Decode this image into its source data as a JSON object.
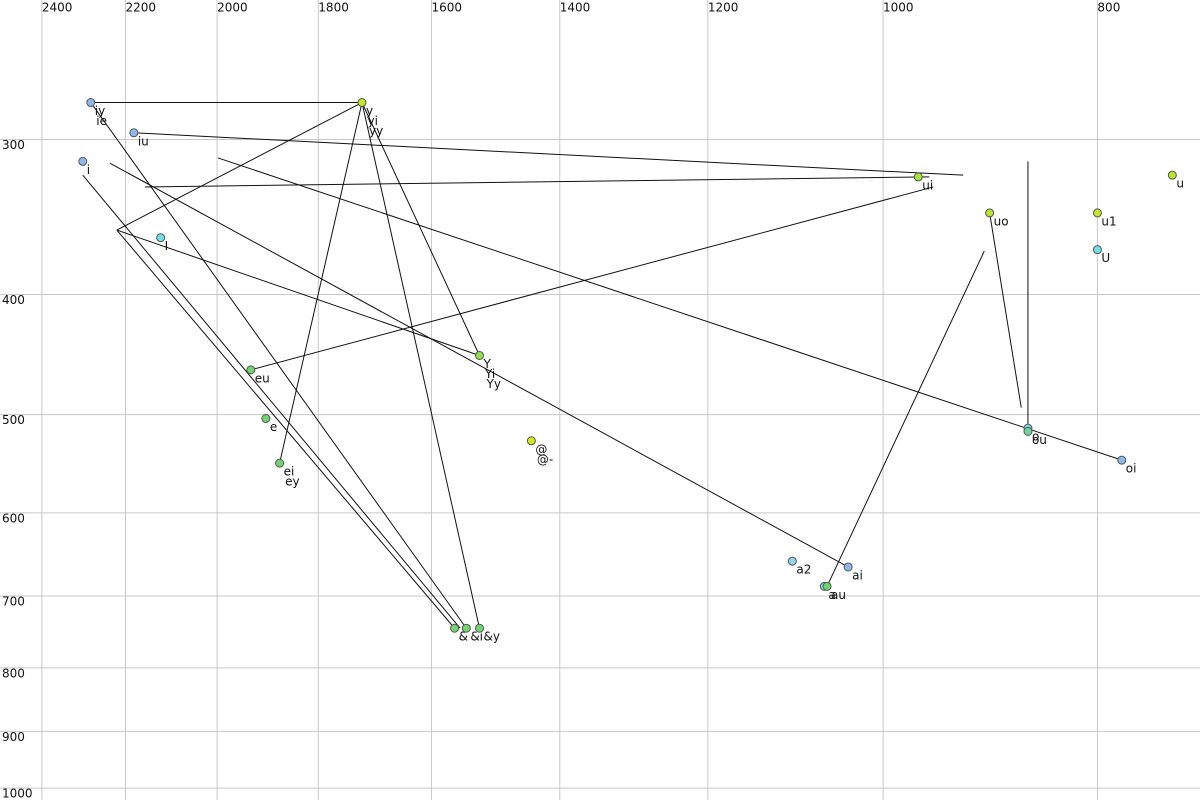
{
  "chart_data": {
    "type": "scatter",
    "xlim": [
      2507,
      719
    ],
    "ylim": [
      229,
      1011
    ],
    "log_x": true,
    "log_y": true,
    "grid": true,
    "xticks": [
      2400,
      2200,
      2000,
      1800,
      1600,
      1400,
      1200,
      1000,
      800
    ],
    "yticks": [
      300,
      400,
      500,
      600,
      700,
      800,
      900,
      1000
    ],
    "points": [
      {
        "labels": [
          "iy",
          "ie"
        ],
        "x": 2281,
        "y": 277,
        "color": "#8fb8ea"
      },
      {
        "labels": [
          "y",
          "yi",
          "yy"
        ],
        "x": 1720,
        "y": 277,
        "color": "#c3e62a"
      },
      {
        "labels": [
          "iu"
        ],
        "x": 2181,
        "y": 293,
        "color": "#8fb8ea"
      },
      {
        "labels": [
          "i"
        ],
        "x": 2300,
        "y": 309,
        "color": "#8fb8ea"
      },
      {
        "labels": [
          "I"
        ],
        "x": 2121,
        "y": 356,
        "color": "#6fe0e6"
      },
      {
        "labels": [
          "ui"
        ],
        "x": 964,
        "y": 318,
        "color": "#a6e636"
      },
      {
        "labels": [
          "uo"
        ],
        "x": 895,
        "y": 340,
        "color": "#b5e62a"
      },
      {
        "labels": [
          "u1"
        ],
        "x": 800,
        "y": 340,
        "color": "#c3e62a"
      },
      {
        "labels": [
          "U"
        ],
        "x": 800,
        "y": 364,
        "color": "#6fe0e6"
      },
      {
        "labels": [
          "u"
        ],
        "x": 740,
        "y": 317,
        "color": "#b5e62a"
      },
      {
        "labels": [
          "eu"
        ],
        "x": 1931,
        "y": 455,
        "color": "#6fd66f"
      },
      {
        "labels": [
          "Y",
          "Yi",
          "Yy"
        ],
        "x": 1522,
        "y": 443,
        "color": "#8fe04a"
      },
      {
        "labels": [
          "e"
        ],
        "x": 1901,
        "y": 498,
        "color": "#6fd66f"
      },
      {
        "labels": [
          "ei",
          "ey"
        ],
        "x": 1874,
        "y": 541,
        "color": "#6fd66f"
      },
      {
        "labels": [
          "@",
          "@-"
        ],
        "x": 1442,
        "y": 519,
        "color": "#d4e61d"
      },
      {
        "labels": [
          "o"
        ],
        "x": 860,
        "y": 507,
        "color": "#6fe0e6"
      },
      {
        "labels": [
          "ou"
        ],
        "x": 860,
        "y": 510,
        "color": "#6fd6a0"
      },
      {
        "labels": [
          "oi"
        ],
        "x": 780,
        "y": 538,
        "color": "#8fb8ea"
      },
      {
        "labels": [
          "a2"
        ],
        "x": 1099,
        "y": 649,
        "color": "#8fd8ea"
      },
      {
        "labels": [
          "ai"
        ],
        "x": 1037,
        "y": 656,
        "color": "#8fb8ea"
      },
      {
        "labels": [
          "a"
        ],
        "x": 1063,
        "y": 680,
        "color": "#6fe0e6"
      },
      {
        "labels": [
          "au"
        ],
        "x": 1060,
        "y": 680,
        "color": "#6fd66f"
      },
      {
        "labels": [
          "&"
        ],
        "x": 1562,
        "y": 735,
        "color": "#6fd66f"
      },
      {
        "labels": [
          "&i"
        ],
        "x": 1543,
        "y": 735,
        "color": "#6fd66f"
      },
      {
        "labels": [
          "&y"
        ],
        "x": 1522,
        "y": 735,
        "color": "#6fd66f"
      }
    ],
    "segments": [
      {
        "x": [
          2281,
          1720
        ],
        "y": [
          277,
          277
        ]
      },
      {
        "x": [
          2181,
          920
        ],
        "y": [
          293,
          317
        ]
      },
      {
        "x": [
          2156,
          953
        ],
        "y": [
          324,
          318
        ]
      },
      {
        "x": [
          949,
          1931
        ],
        "y": [
          324,
          455
        ]
      },
      {
        "x": [
          1720,
          2220
        ],
        "y": [
          277,
          351
        ]
      },
      {
        "x": [
          2220,
          1522
        ],
        "y": [
          351,
          443
        ]
      },
      {
        "x": [
          2220,
          1562
        ],
        "y": [
          351,
          735
        ]
      },
      {
        "x": [
          2300,
          1553
        ],
        "y": [
          317,
          735
        ]
      },
      {
        "x": [
          2281,
          1543
        ],
        "y": [
          277,
          735
        ]
      },
      {
        "x": [
          2236,
          1037
        ],
        "y": [
          310,
          656
        ]
      },
      {
        "x": [
          1998,
          780
        ],
        "y": [
          307,
          538
        ]
      },
      {
        "x": [
          1720,
          1874
        ],
        "y": [
          277,
          541
        ]
      },
      {
        "x": [
          1720,
          1522
        ],
        "y": [
          277,
          735
        ]
      },
      {
        "x": [
          1720,
          1522
        ],
        "y": [
          277,
          443
        ]
      },
      {
        "x": [
          1060,
          900
        ],
        "y": [
          680,
          365
        ]
      },
      {
        "x": [
          895,
          866
        ],
        "y": [
          340,
          488
        ]
      },
      {
        "x": [
          860,
          860
        ],
        "y": [
          309,
          507
        ]
      }
    ]
  }
}
